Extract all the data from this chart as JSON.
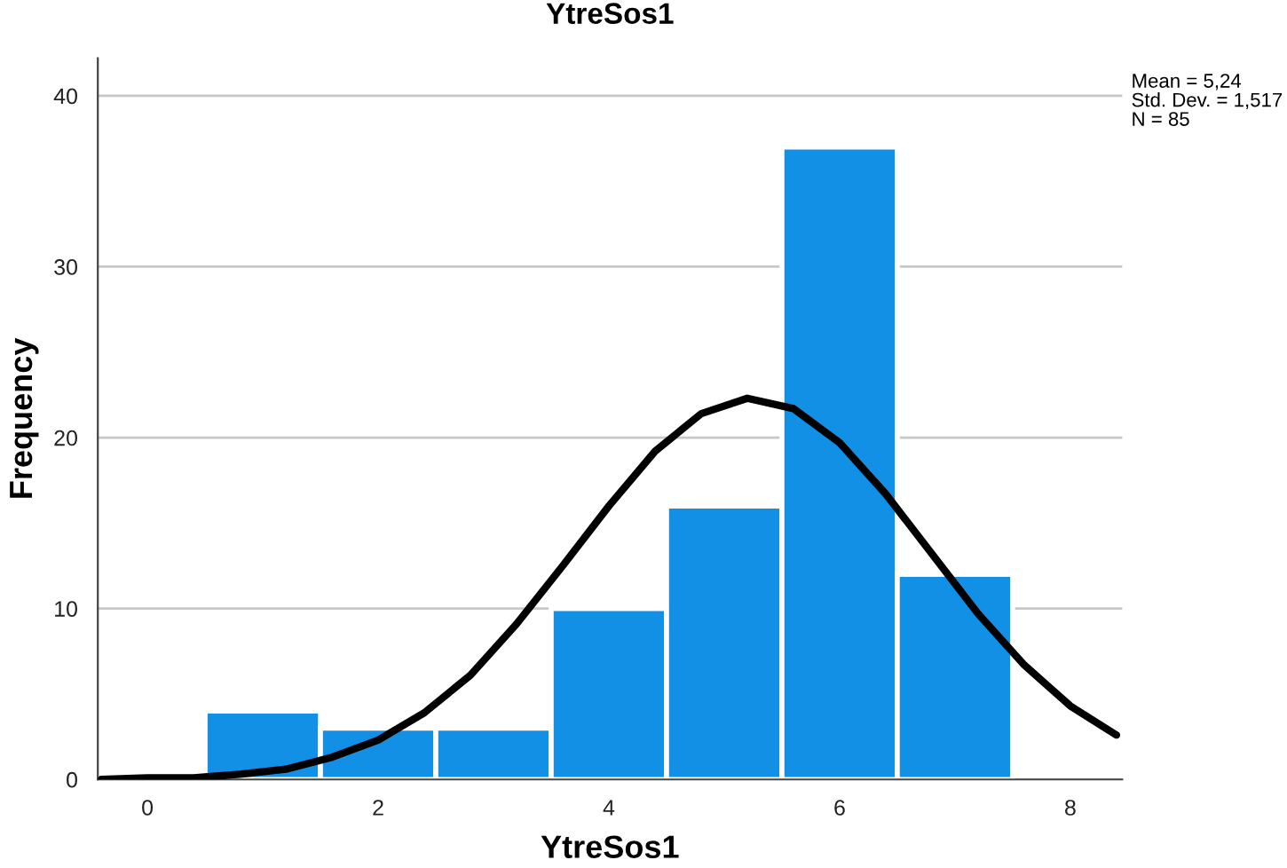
{
  "chart_data": {
    "type": "histogram",
    "title": "YtreSos1",
    "xlabel": "YtreSos1",
    "ylabel": "Frequency",
    "bins": [
      0.5,
      1.5,
      2.5,
      3.5,
      4.5,
      5.5,
      6.5,
      7.5
    ],
    "values": [
      4,
      3,
      3,
      10,
      16,
      37,
      12
    ],
    "color": "#1290e6",
    "series": [
      {
        "type": "line",
        "color": "#000000",
        "x": [
          -0.4,
          0.0,
          0.4,
          0.8,
          1.2,
          1.6,
          2.0,
          2.4,
          2.8,
          3.2,
          3.6,
          4.0,
          4.4,
          4.8,
          5.2,
          5.6,
          6.0,
          6.4,
          6.8,
          7.2,
          7.6,
          8.0,
          8.4
        ],
        "values": [
          0.0,
          0.1,
          0.1,
          0.3,
          0.6,
          1.3,
          2.3,
          3.9,
          6.1,
          9.1,
          12.5,
          16.0,
          19.2,
          21.4,
          22.3,
          21.7,
          19.7,
          16.7,
          13.2,
          9.7,
          6.7,
          4.3,
          2.6
        ]
      }
    ],
    "xlim": [
      -0.43,
      8.45
    ],
    "xticks": [
      0,
      2,
      4,
      6,
      8
    ],
    "ylim": [
      0,
      42.2
    ],
    "yticks": [
      0,
      10,
      20,
      30,
      40
    ],
    "grid": "y",
    "annotations": [
      "Mean = 5,24",
      "Std. Dev. = 1,517",
      "N = 85"
    ]
  }
}
